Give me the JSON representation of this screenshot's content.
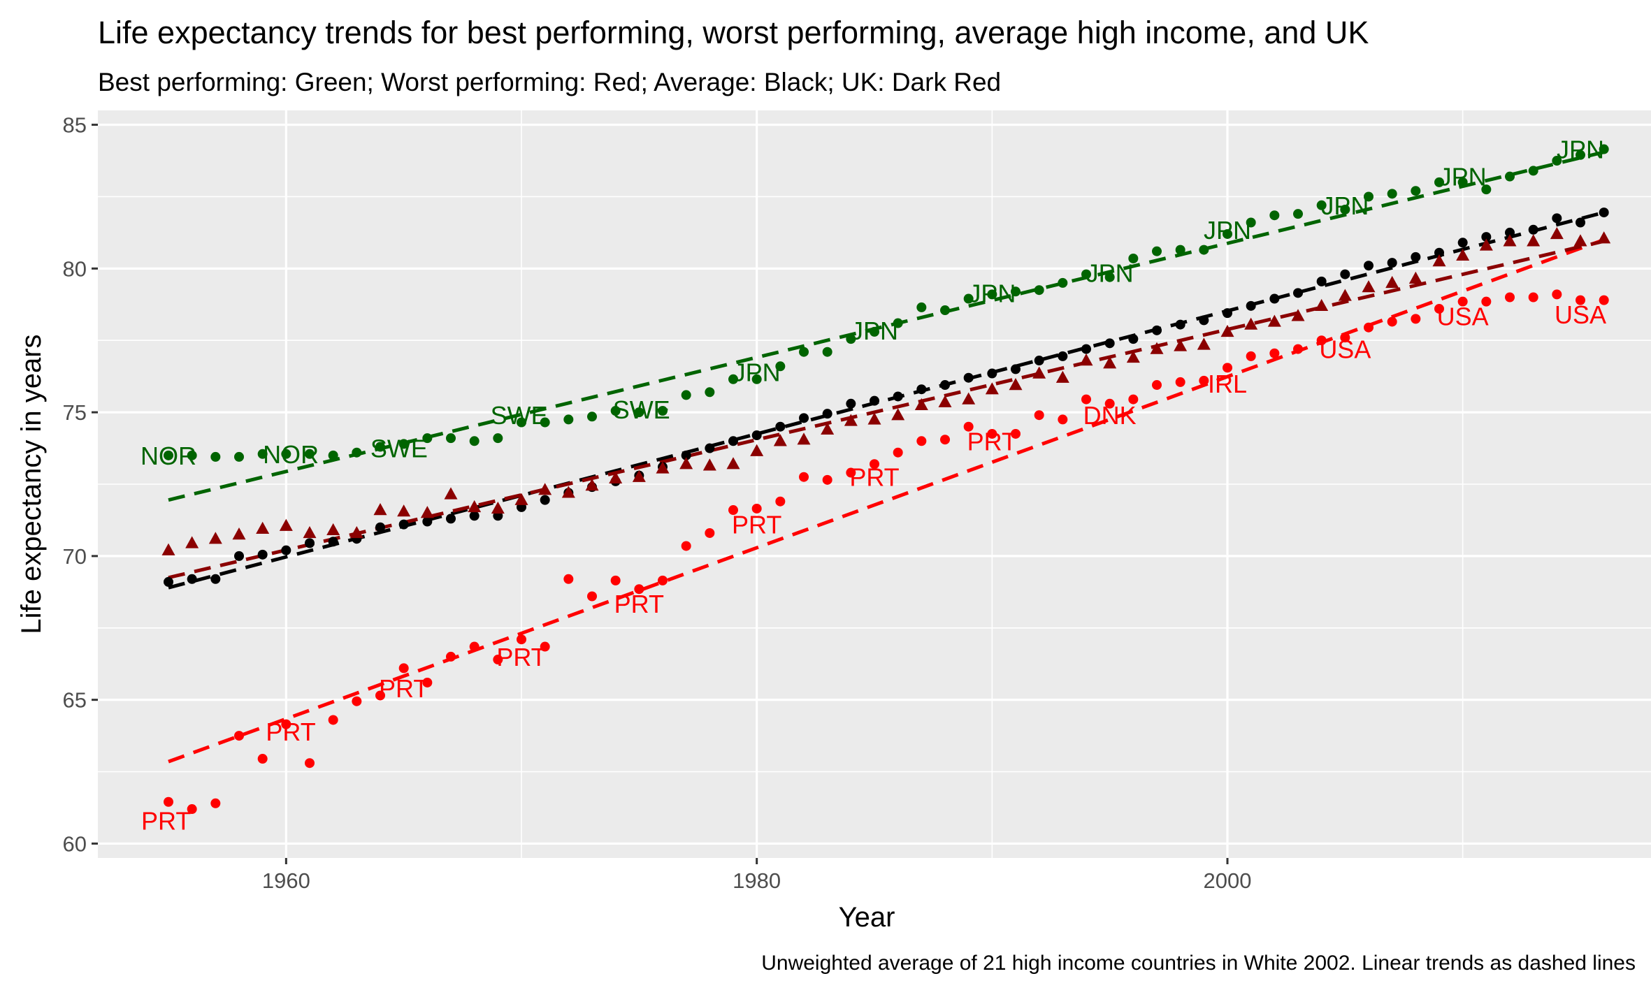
{
  "chart_data": {
    "type": "scatter",
    "title": "Life expectancy trends for best performing, worst performing, average high income, and UK",
    "subtitle": "Best performing: Green; Worst performing: Red; Average: Black; UK: Dark Red",
    "xlabel": "Year",
    "ylabel": "Life expectancy in years",
    "caption": "Unweighted average of 21 high income countries in White 2002. Linear trends as dashed lines",
    "xlim": [
      1952,
      2018
    ],
    "ylim": [
      59.5,
      85.5
    ],
    "x_ticks": [
      1960,
      1980,
      2000
    ],
    "y_ticks": [
      60,
      65,
      70,
      75,
      80,
      85
    ],
    "grid": true,
    "legend": "none",
    "colors": {
      "best": "#006400",
      "worst": "#FF0000",
      "average": "#000000",
      "uk": "#8B0000",
      "panel": "#EBEBEB",
      "grid": "#FFFFFF"
    },
    "series": [
      {
        "key": "best",
        "shape": "circle",
        "x": [
          1955,
          1956,
          1957,
          1958,
          1959,
          1960,
          1961,
          1962,
          1963,
          1964,
          1965,
          1966,
          1967,
          1968,
          1969,
          1970,
          1971,
          1972,
          1973,
          1974,
          1975,
          1976,
          1977,
          1978,
          1979,
          1980,
          1981,
          1982,
          1983,
          1984,
          1985,
          1986,
          1987,
          1988,
          1989,
          1990,
          1991,
          1992,
          1993,
          1994,
          1995,
          1996,
          1997,
          1998,
          1999,
          2000,
          2001,
          2002,
          2003,
          2004,
          2005,
          2006,
          2007,
          2008,
          2009,
          2010,
          2011,
          2012,
          2013,
          2014,
          2015,
          2016
        ],
        "y": [
          73.5,
          73.5,
          73.45,
          73.45,
          73.55,
          73.55,
          73.55,
          73.5,
          73.6,
          73.8,
          73.9,
          74.1,
          74.1,
          74.0,
          74.1,
          74.65,
          74.65,
          74.75,
          74.85,
          75.05,
          75.0,
          75.05,
          75.6,
          75.7,
          76.15,
          76.15,
          76.6,
          77.1,
          77.1,
          77.55,
          77.8,
          78.1,
          78.65,
          78.55,
          78.95,
          79.1,
          79.2,
          79.25,
          79.5,
          79.8,
          79.7,
          80.35,
          80.6,
          80.65,
          80.65,
          81.2,
          81.6,
          81.85,
          81.9,
          82.2,
          82.05,
          82.5,
          82.6,
          82.7,
          83.0,
          83.0,
          82.75,
          83.2,
          83.4,
          83.75,
          83.95,
          84.15
        ]
      },
      {
        "key": "worst",
        "shape": "circle",
        "x": [
          1955,
          1956,
          1957,
          1958,
          1959,
          1960,
          1961,
          1962,
          1963,
          1964,
          1965,
          1966,
          1967,
          1968,
          1969,
          1970,
          1971,
          1972,
          1973,
          1974,
          1975,
          1976,
          1977,
          1978,
          1979,
          1980,
          1981,
          1982,
          1983,
          1984,
          1985,
          1986,
          1987,
          1988,
          1989,
          1990,
          1991,
          1992,
          1993,
          1994,
          1995,
          1996,
          1997,
          1998,
          1999,
          2000,
          2001,
          2002,
          2003,
          2004,
          2005,
          2006,
          2007,
          2008,
          2009,
          2010,
          2011,
          2012,
          2013,
          2014,
          2015,
          2016
        ],
        "y": [
          61.45,
          61.2,
          61.4,
          63.75,
          62.95,
          64.15,
          62.8,
          64.3,
          64.95,
          65.15,
          66.1,
          65.6,
          66.5,
          66.85,
          66.4,
          67.1,
          66.85,
          69.2,
          68.6,
          69.15,
          68.85,
          69.15,
          70.35,
          70.8,
          71.6,
          71.65,
          71.9,
          72.75,
          72.65,
          72.9,
          73.2,
          73.6,
          74.0,
          74.05,
          74.5,
          74.25,
          74.25,
          74.9,
          74.75,
          75.45,
          75.3,
          75.45,
          75.95,
          76.05,
          76.1,
          76.55,
          76.95,
          77.05,
          77.2,
          77.5,
          77.6,
          77.95,
          78.15,
          78.25,
          78.6,
          78.85,
          78.85,
          79.0,
          79.0,
          79.1,
          78.9,
          78.9
        ]
      },
      {
        "key": "average",
        "shape": "circle",
        "x": [
          1955,
          1956,
          1957,
          1958,
          1959,
          1960,
          1961,
          1962,
          1963,
          1964,
          1965,
          1966,
          1967,
          1968,
          1969,
          1970,
          1971,
          1972,
          1973,
          1974,
          1975,
          1976,
          1977,
          1978,
          1979,
          1980,
          1981,
          1982,
          1983,
          1984,
          1985,
          1986,
          1987,
          1988,
          1989,
          1990,
          1991,
          1992,
          1993,
          1994,
          1995,
          1996,
          1997,
          1998,
          1999,
          2000,
          2001,
          2002,
          2003,
          2004,
          2005,
          2006,
          2007,
          2008,
          2009,
          2010,
          2011,
          2012,
          2013,
          2014,
          2015,
          2016
        ],
        "y": [
          69.1,
          69.2,
          69.2,
          70.0,
          70.05,
          70.2,
          70.45,
          70.5,
          70.6,
          71.0,
          71.1,
          71.2,
          71.3,
          71.4,
          71.4,
          71.7,
          71.95,
          72.2,
          72.4,
          72.6,
          72.8,
          73.1,
          73.5,
          73.75,
          74.0,
          74.2,
          74.5,
          74.8,
          74.95,
          75.3,
          75.4,
          75.55,
          75.8,
          75.95,
          76.2,
          76.35,
          76.5,
          76.8,
          76.95,
          77.2,
          77.4,
          77.55,
          77.85,
          78.05,
          78.2,
          78.45,
          78.7,
          78.95,
          79.15,
          79.55,
          79.8,
          80.1,
          80.2,
          80.4,
          80.55,
          80.9,
          81.1,
          81.25,
          81.35,
          81.75,
          81.6,
          81.95
        ]
      },
      {
        "key": "uk",
        "shape": "triangle",
        "x": [
          1955,
          1956,
          1957,
          1958,
          1959,
          1960,
          1961,
          1962,
          1963,
          1964,
          1965,
          1966,
          1967,
          1968,
          1969,
          1970,
          1971,
          1972,
          1973,
          1974,
          1975,
          1976,
          1977,
          1978,
          1979,
          1980,
          1981,
          1982,
          1983,
          1984,
          1985,
          1986,
          1987,
          1988,
          1989,
          1990,
          1991,
          1992,
          1993,
          1994,
          1995,
          1996,
          1997,
          1998,
          1999,
          2000,
          2001,
          2002,
          2003,
          2004,
          2005,
          2006,
          2007,
          2008,
          2009,
          2010,
          2011,
          2012,
          2013,
          2014,
          2015,
          2016
        ],
        "y": [
          70.2,
          70.45,
          70.6,
          70.75,
          70.95,
          71.05,
          70.8,
          70.9,
          70.8,
          71.6,
          71.55,
          71.5,
          72.15,
          71.7,
          71.65,
          71.95,
          72.3,
          72.2,
          72.45,
          72.7,
          72.75,
          73.05,
          73.2,
          73.15,
          73.2,
          73.65,
          74.0,
          74.05,
          74.4,
          74.7,
          74.75,
          74.9,
          75.25,
          75.35,
          75.45,
          75.8,
          75.95,
          76.35,
          76.2,
          76.8,
          76.7,
          76.9,
          77.2,
          77.3,
          77.35,
          77.8,
          78.05,
          78.15,
          78.35,
          78.7,
          79.05,
          79.35,
          79.5,
          79.65,
          80.25,
          80.45,
          80.8,
          80.95,
          80.95,
          81.2,
          80.95,
          81.05
        ]
      }
    ],
    "trends": [
      {
        "key": "best",
        "x": [
          1955,
          2016
        ],
        "y": [
          71.95,
          84.05
        ]
      },
      {
        "key": "worst",
        "x": [
          1955,
          2016
        ],
        "y": [
          62.85,
          81.0
        ]
      },
      {
        "key": "average",
        "x": [
          1955,
          2016
        ],
        "y": [
          68.9,
          81.95
        ]
      },
      {
        "key": "uk",
        "x": [
          1955,
          2016
        ],
        "y": [
          69.25,
          80.95
        ]
      }
    ],
    "annotations": [
      {
        "text": "NOR",
        "x": 1955.0,
        "y": 73.5,
        "color": "best"
      },
      {
        "text": "NOR",
        "x": 1960.2,
        "y": 73.55,
        "color": "best"
      },
      {
        "text": "SWE",
        "x": 1964.8,
        "y": 73.75,
        "color": "best"
      },
      {
        "text": "SWE",
        "x": 1969.9,
        "y": 74.9,
        "color": "best"
      },
      {
        "text": "SWE",
        "x": 1975.1,
        "y": 75.1,
        "color": "best"
      },
      {
        "text": "JPN",
        "x": 1980.0,
        "y": 76.4,
        "color": "best"
      },
      {
        "text": "JPN",
        "x": 1985.0,
        "y": 77.85,
        "color": "best"
      },
      {
        "text": "JPN",
        "x": 1990.0,
        "y": 79.15,
        "color": "best"
      },
      {
        "text": "JPN",
        "x": 1995.0,
        "y": 79.85,
        "color": "best"
      },
      {
        "text": "JPN",
        "x": 2000.0,
        "y": 81.35,
        "color": "best"
      },
      {
        "text": "JPN",
        "x": 2005.0,
        "y": 82.2,
        "color": "best"
      },
      {
        "text": "JPN",
        "x": 2010.0,
        "y": 83.2,
        "color": "best"
      },
      {
        "text": "JPN",
        "x": 2015.0,
        "y": 84.15,
        "color": "best"
      },
      {
        "text": "PRT",
        "x": 1954.9,
        "y": 60.8,
        "color": "worst"
      },
      {
        "text": "PRT",
        "x": 1960.2,
        "y": 63.9,
        "color": "worst"
      },
      {
        "text": "PRT",
        "x": 1965.0,
        "y": 65.4,
        "color": "worst"
      },
      {
        "text": "PRT",
        "x": 1970.0,
        "y": 66.5,
        "color": "worst"
      },
      {
        "text": "PRT",
        "x": 1975.0,
        "y": 68.35,
        "color": "worst"
      },
      {
        "text": "PRT",
        "x": 1980.0,
        "y": 71.1,
        "color": "worst"
      },
      {
        "text": "PRT",
        "x": 1985.0,
        "y": 72.75,
        "color": "worst"
      },
      {
        "text": "PRT",
        "x": 1990.0,
        "y": 74.0,
        "color": "worst"
      },
      {
        "text": "DNK",
        "x": 1995.0,
        "y": 74.9,
        "color": "worst"
      },
      {
        "text": "IRL",
        "x": 2000.0,
        "y": 76.0,
        "color": "worst"
      },
      {
        "text": "USA",
        "x": 2005.0,
        "y": 77.2,
        "color": "worst"
      },
      {
        "text": "USA",
        "x": 2010.0,
        "y": 78.35,
        "color": "worst"
      },
      {
        "text": "USA",
        "x": 2015.0,
        "y": 78.4,
        "color": "worst"
      }
    ]
  }
}
